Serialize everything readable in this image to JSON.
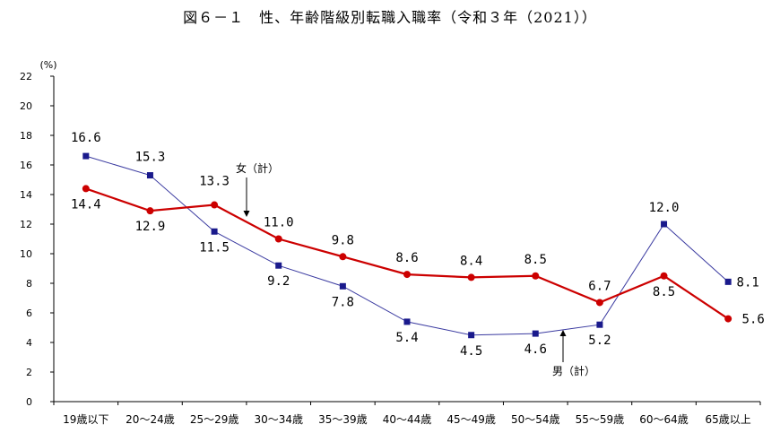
{
  "chart_data": {
    "type": "line",
    "title": "図６－１　性、年齢階級別転職入職率（令和３年（2021））",
    "ylabel": "(%)",
    "xlabel": "",
    "ylim": [
      0,
      22
    ],
    "yticks": [
      0,
      2,
      4,
      6,
      8,
      10,
      12,
      14,
      16,
      18,
      20,
      22
    ],
    "grid": false,
    "categories": [
      "19歳以下",
      "20～24歳",
      "25～29歳",
      "30～34歳",
      "35～39歳",
      "40～44歳",
      "45～49歳",
      "50～54歳",
      "55～59歳",
      "60～64歳",
      "65歳以上"
    ],
    "series": [
      {
        "name": "女（計）",
        "color": "#cc0000",
        "marker": "circle",
        "values": [
          14.4,
          12.9,
          13.3,
          11.0,
          9.8,
          8.6,
          8.4,
          8.5,
          6.7,
          8.5,
          5.6
        ],
        "labels": [
          "14.4",
          "12.9",
          "13.3",
          "11.0",
          "9.8",
          "8.6",
          "8.4",
          "8.5",
          "6.7",
          "8.5",
          "5.6"
        ]
      },
      {
        "name": "男（計）",
        "color": "#1a1a8c",
        "marker": "square",
        "values": [
          16.6,
          15.3,
          11.5,
          9.2,
          7.8,
          5.4,
          4.5,
          4.6,
          5.2,
          12.0,
          8.1
        ],
        "labels": [
          "16.6",
          "15.3",
          "11.5",
          "9.2",
          "7.8",
          "5.4",
          "4.5",
          "4.6",
          "5.2",
          "12.0",
          "8.1"
        ]
      }
    ]
  }
}
